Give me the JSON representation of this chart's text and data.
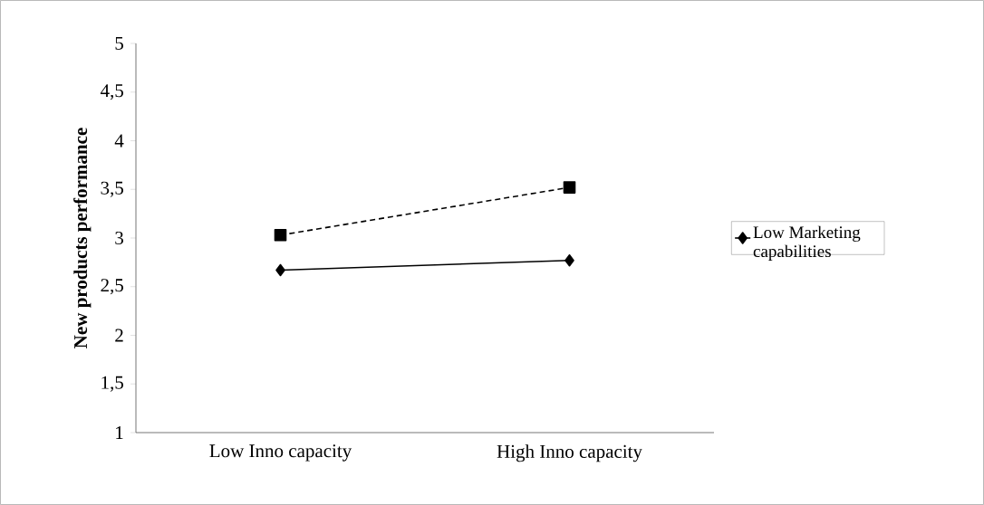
{
  "chart_data": {
    "type": "line",
    "ylabel": "New products performance",
    "categories": [
      "Low Inno capacity",
      "High Inno capacity"
    ],
    "series": [
      {
        "name": "Low Marketing capabilities",
        "color": "#000000",
        "values": [
          2.67,
          2.77
        ],
        "marker": "diamond",
        "line_style": "solid"
      },
      {
        "color": "#000000",
        "values": [
          3.03,
          3.52
        ],
        "marker": "square",
        "line_style": "dashed"
      }
    ],
    "ylim": [
      1,
      5
    ],
    "yticks": [
      1,
      {
        "value": 1.5,
        "label": "1,5"
      },
      2,
      {
        "value": 2.5,
        "label": "2,5"
      },
      3,
      {
        "value": 3.5,
        "label": "3,5"
      },
      4,
      {
        "value": 4.5,
        "label": "4,5"
      },
      5
    ],
    "grid": false,
    "legend": "right"
  }
}
